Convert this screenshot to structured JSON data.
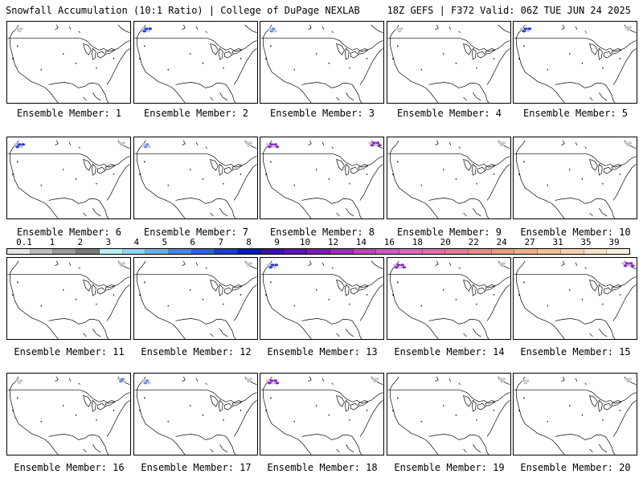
{
  "header": {
    "left": "Snowfall Accumulation (10:1 Ratio) | College of DuPage NEXLAB",
    "right": "18Z GEFS | F372 Valid: 06Z TUE JUN 24 2025"
  },
  "panels": [
    {
      "label": "Ensemble Member: 1",
      "snow": [
        {
          "region": "nw",
          "intensity": 1
        }
      ]
    },
    {
      "label": "Ensemble Member: 2",
      "snow": [
        {
          "region": "nw",
          "intensity": 3
        }
      ]
    },
    {
      "label": "Ensemble Member: 3",
      "snow": [
        {
          "region": "nw",
          "intensity": 2
        }
      ]
    },
    {
      "label": "Ensemble Member: 4",
      "snow": [
        {
          "region": "nw",
          "intensity": 1
        }
      ]
    },
    {
      "label": "Ensemble Member: 5",
      "snow": [
        {
          "region": "nw",
          "intensity": 3
        },
        {
          "region": "ne",
          "intensity": 1
        }
      ]
    },
    {
      "label": "Ensemble Member: 6",
      "snow": [
        {
          "region": "nw",
          "intensity": 3
        },
        {
          "region": "ne",
          "intensity": 1
        }
      ]
    },
    {
      "label": "Ensemble Member: 7",
      "snow": [
        {
          "region": "nw",
          "intensity": 2
        },
        {
          "region": "ne",
          "intensity": 1
        }
      ]
    },
    {
      "label": "Ensemble Member: 8",
      "snow": [
        {
          "region": "nw",
          "intensity": 4
        },
        {
          "region": "ne",
          "intensity": 4
        }
      ]
    },
    {
      "label": "Ensemble Member: 9",
      "snow": [
        {
          "region": "ne",
          "intensity": 1
        }
      ]
    },
    {
      "label": "Ensemble Member: 10",
      "snow": [
        {
          "region": "ne",
          "intensity": 1
        }
      ]
    },
    {
      "label": "Ensemble Member: 11",
      "snow": [
        {
          "region": "ne",
          "intensity": 1
        }
      ]
    },
    {
      "label": "Ensemble Member: 12",
      "snow": [
        {
          "region": "ne",
          "intensity": 1
        }
      ]
    },
    {
      "label": "Ensemble Member: 13",
      "snow": [
        {
          "region": "nw",
          "intensity": 3
        }
      ]
    },
    {
      "label": "Ensemble Member: 14",
      "snow": [
        {
          "region": "nw",
          "intensity": 4
        },
        {
          "region": "ne",
          "intensity": 1
        }
      ]
    },
    {
      "label": "Ensemble Member: 15",
      "snow": [
        {
          "region": "ne",
          "intensity": 4
        }
      ]
    },
    {
      "label": "Ensemble Member: 16",
      "snow": [
        {
          "region": "nw",
          "intensity": 1
        },
        {
          "region": "ne",
          "intensity": 2
        }
      ]
    },
    {
      "label": "Ensemble Member: 17",
      "snow": [
        {
          "region": "nw",
          "intensity": 2
        },
        {
          "region": "ne",
          "intensity": 1
        }
      ]
    },
    {
      "label": "Ensemble Member: 18",
      "snow": [
        {
          "region": "nw",
          "intensity": 4
        },
        {
          "region": "ne",
          "intensity": 1
        }
      ]
    },
    {
      "label": "Ensemble Member: 19",
      "snow": [
        {
          "region": "ne",
          "intensity": 1
        }
      ]
    },
    {
      "label": "Ensemble Member: 20",
      "snow": [
        {
          "region": "nw",
          "intensity": 1
        },
        {
          "region": "ne",
          "intensity": 1
        }
      ]
    }
  ],
  "color_scale": {
    "labels": [
      "0.1",
      "1",
      "2",
      "3",
      "4",
      "5",
      "6",
      "7",
      "8",
      "9",
      "10",
      "12",
      "14",
      "16",
      "18",
      "20",
      "22",
      "24",
      "27",
      "31",
      "35",
      "39"
    ],
    "colors": [
      "#e6e6e6",
      "#bdbdbd",
      "#9a9a9a",
      "#7a7a7a",
      "#b6eef2",
      "#8fd3f0",
      "#6aaee8",
      "#4a86e0",
      "#2f5ee6",
      "#1d35e6",
      "#0b14d8",
      "#3a10b8",
      "#5a14b4",
      "#7a1cb0",
      "#9a30b4",
      "#b848b8",
      "#cc5cc0",
      "#d86ab8",
      "#e070a8",
      "#e27a98",
      "#e48c88",
      "#e89c84",
      "#eeae8c",
      "#f2c098",
      "#f6d2ae",
      "#fae4c8",
      "#fcf0de"
    ]
  },
  "colors": {
    "snow_light": "#c8c8c8",
    "snow_mid": "#6a90e8",
    "snow_heavy": "#2238e0",
    "snow_extreme": "#8a24c8"
  }
}
